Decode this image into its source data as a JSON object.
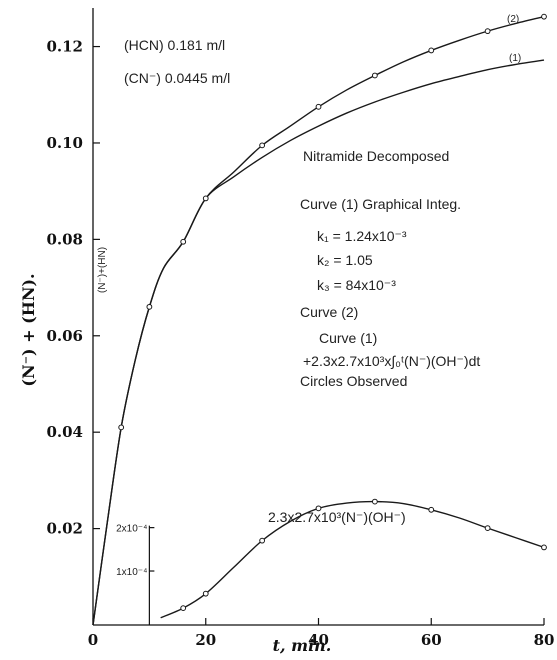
{
  "chart_data": {
    "type": "line",
    "xlabel": "t, min.",
    "ylabel": "(N⁻) + (HN).",
    "xlim": [
      0,
      80
    ],
    "ylim": [
      0,
      0.128
    ],
    "x_ticks": [
      "0",
      "20",
      "40",
      "60",
      "80"
    ],
    "y_ticks": [
      "0.02",
      "0.04",
      "0.06",
      "0.08",
      "0.10",
      "0.12"
    ],
    "series": [
      {
        "name": "(2)",
        "points": [
          [
            0,
            0
          ],
          [
            2.5,
            0.021
          ],
          [
            5,
            0.041
          ],
          [
            7.5,
            0.055
          ],
          [
            10,
            0.066
          ],
          [
            12.5,
            0.074
          ],
          [
            16,
            0.0795
          ],
          [
            20,
            0.0885
          ],
          [
            25,
            0.094
          ],
          [
            30,
            0.0995
          ],
          [
            35,
            0.1035
          ],
          [
            40,
            0.1075
          ],
          [
            45,
            0.111
          ],
          [
            50,
            0.114
          ],
          [
            55,
            0.1168
          ],
          [
            60,
            0.1192
          ],
          [
            65,
            0.1213
          ],
          [
            70,
            0.1232
          ],
          [
            75,
            0.1248
          ],
          [
            80,
            0.1262
          ]
        ]
      },
      {
        "name": "(1)",
        "points": [
          [
            0,
            0
          ],
          [
            2.5,
            0.021
          ],
          [
            5,
            0.041
          ],
          [
            7.5,
            0.055
          ],
          [
            10,
            0.066
          ],
          [
            12.5,
            0.074
          ],
          [
            16,
            0.0795
          ],
          [
            20,
            0.0885
          ],
          [
            25,
            0.093
          ],
          [
            30,
            0.097
          ],
          [
            35,
            0.1005
          ],
          [
            40,
            0.1035
          ],
          [
            45,
            0.1062
          ],
          [
            50,
            0.1085
          ],
          [
            55,
            0.1105
          ],
          [
            60,
            0.1123
          ],
          [
            65,
            0.1138
          ],
          [
            70,
            0.1152
          ],
          [
            75,
            0.1163
          ],
          [
            80,
            0.1172
          ]
        ]
      },
      {
        "name": "2.3x2.7x10³(N⁻)(OH⁻)",
        "points": [
          [
            12,
            0.0015
          ],
          [
            16,
            0.0035
          ],
          [
            20,
            0.0065
          ],
          [
            25,
            0.012
          ],
          [
            30,
            0.0175
          ],
          [
            35,
            0.0215
          ],
          [
            40,
            0.0242
          ],
          [
            45,
            0.0253
          ],
          [
            50,
            0.0256
          ],
          [
            55,
            0.0252
          ],
          [
            60,
            0.0239
          ],
          [
            65,
            0.0222
          ],
          [
            70,
            0.0201
          ],
          [
            75,
            0.0181
          ],
          [
            80,
            0.0161
          ]
        ]
      }
    ],
    "observed_points": [
      [
        [
          5,
          0.041
        ],
        [
          10,
          0.066
        ],
        [
          16,
          0.0795
        ],
        [
          20,
          0.0885
        ],
        [
          30,
          0.0995
        ],
        [
          40,
          0.1075
        ],
        [
          50,
          0.114
        ],
        [
          60,
          0.1192
        ],
        [
          70,
          0.1232
        ],
        [
          80,
          0.1262
        ]
      ],
      [
        [
          16,
          0.0035
        ],
        [
          20,
          0.0065
        ],
        [
          30,
          0.0175
        ],
        [
          40,
          0.0242
        ],
        [
          50,
          0.0256
        ],
        [
          60,
          0.0239
        ],
        [
          70,
          0.0201
        ],
        [
          80,
          0.0161
        ]
      ]
    ],
    "inset_scale": {
      "ticks": [
        "2x10⁻⁴",
        "1x10⁻⁴"
      ],
      "values": [
        0.0202,
        0.0112
      ]
    }
  },
  "annotations": {
    "hcn": "(HCN) 0.181 m/l",
    "cn": "(CN⁻) 0.0445 m/l",
    "curve2_label": "(2)",
    "curve1_label": "(1)",
    "title": "Nitramide Decomposed",
    "curve1_line": "Curve (1)   Graphical Integ.",
    "k1": "k₁ = 1.24x10⁻³",
    "k2": "k₂ = 1.05",
    "k3": "k₃ = 84x10⁻³",
    "curve2_line": "Curve  (2)",
    "curve2_formula_a": "Curve (1)",
    "curve2_formula_b": "+2.3x2.7x10³x∫₀ᵗ(N⁻)(OH⁻)dt",
    "circles": "Circles       Observed",
    "lower_curve": "2.3x2.7x10³(N⁻)(OH⁻)",
    "vertical_note": "(N⁻)+(HN)"
  }
}
